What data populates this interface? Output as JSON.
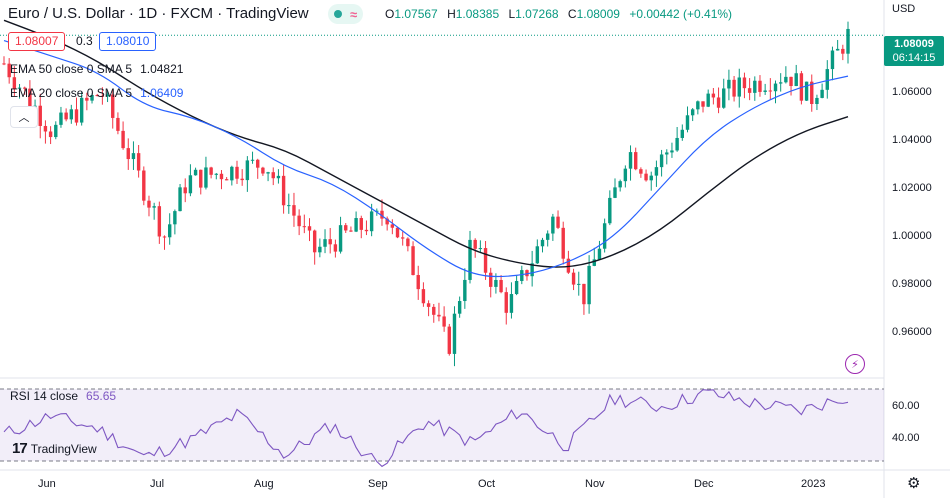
{
  "header": {
    "title": "Euro / U.S. Dollar · 1D · FXCM · TradingView",
    "ohlc": [
      {
        "label": "O",
        "value": "1.07567"
      },
      {
        "label": "H",
        "value": "1.08385"
      },
      {
        "label": "L",
        "value": "1.07268"
      },
      {
        "label": "C",
        "value": "1.08009"
      },
      {
        "label": "",
        "value": "+0.00442 (+0.41%)"
      }
    ]
  },
  "trade": {
    "sell": "1.08007",
    "spread": "0.3",
    "buy": "1.08010"
  },
  "indicators": {
    "ema50": {
      "label": "EMA 50 close 0 SMA 5",
      "value": "1.04821"
    },
    "ema20": {
      "label": "EMA 20 close 0 SMA 5",
      "value": "1.06409"
    },
    "rsi": {
      "label": "RSI 14 close",
      "value": "65.65"
    }
  },
  "axis": {
    "currency": "USD",
    "last_price": "1.08009",
    "countdown": "06:14:15",
    "yticks": [
      "1.06000",
      "1.04000",
      "1.02000",
      "1.00000",
      "0.98000",
      "0.96000"
    ],
    "rsi_ticks": [
      "60.00",
      "40.00"
    ],
    "xticks": [
      "Jun",
      "Jul",
      "Aug",
      "Sep",
      "Oct",
      "Nov",
      "Dec",
      "2023"
    ]
  },
  "logo": "TradingView",
  "colors": {
    "up": "#089981",
    "down": "#f23645",
    "ema20": "#2962ff",
    "ema50": "#131722",
    "rsi": "#7e57c2"
  },
  "chart_data": {
    "type": "candlestick",
    "ylim": [
      0.945,
      1.094
    ],
    "rsi_ylim": [
      25,
      75
    ],
    "anchors": [
      {
        "date": "2022-06-01",
        "close": 1.069
      },
      {
        "date": "2022-06-14",
        "close": 1.042
      },
      {
        "date": "2022-06-27",
        "close": 1.058
      },
      {
        "date": "2022-07-14",
        "close": 1.001
      },
      {
        "date": "2022-07-20",
        "close": 1.023
      },
      {
        "date": "2022-08-10",
        "close": 1.03
      },
      {
        "date": "2022-08-23",
        "close": 0.995
      },
      {
        "date": "2022-09-12",
        "close": 1.01
      },
      {
        "date": "2022-09-28",
        "close": 0.957
      },
      {
        "date": "2022-10-04",
        "close": 0.998
      },
      {
        "date": "2022-10-14",
        "close": 0.973
      },
      {
        "date": "2022-10-26",
        "close": 1.008
      },
      {
        "date": "2022-11-03",
        "close": 0.976
      },
      {
        "date": "2022-11-15",
        "close": 1.035
      },
      {
        "date": "2022-11-21",
        "close": 1.025
      },
      {
        "date": "2022-12-05",
        "close": 1.054
      },
      {
        "date": "2022-12-16",
        "close": 1.06
      },
      {
        "date": "2022-12-28",
        "close": 1.065
      },
      {
        "date": "2023-01-03",
        "close": 1.055
      },
      {
        "date": "2023-01-13",
        "close": 1.08
      }
    ],
    "series": [
      {
        "name": "EMA 20 close 0 SMA 5",
        "values": [
          1.078,
          1.072,
          1.066,
          1.052,
          1.048,
          1.04,
          1.028,
          1.022,
          1.01,
          0.996,
          0.985,
          0.985,
          0.99,
          1.0,
          1.02,
          1.04,
          1.052,
          1.06,
          1.064
        ]
      },
      {
        "name": "EMA 50 close 0 SMA 5",
        "values": [
          1.086,
          1.079,
          1.07,
          1.058,
          1.048,
          1.04,
          1.035,
          1.025,
          1.015,
          1.005,
          0.995,
          0.99,
          0.988,
          0.993,
          1.003,
          1.018,
          1.032,
          1.042,
          1.048
        ]
      },
      {
        "name": "RSI 14 close",
        "values": [
          45,
          55,
          48,
          32,
          42,
          56,
          33,
          50,
          28,
          52,
          40,
          58,
          38,
          65,
          60,
          68,
          62,
          58,
          66
        ]
      }
    ]
  }
}
